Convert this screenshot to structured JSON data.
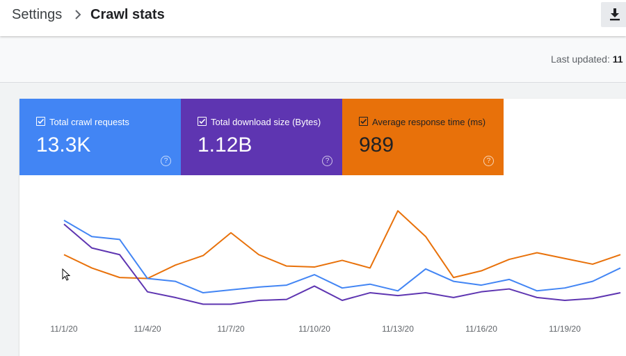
{
  "breadcrumb": {
    "root": "Settings",
    "current": "Crawl stats"
  },
  "toolbar": {
    "export_icon": "download-icon"
  },
  "status": {
    "last_updated_label": "Last updated:",
    "last_updated_value": "11"
  },
  "tiles": [
    {
      "label": "Total crawl requests",
      "value": "13.3K",
      "color": "#4285f4",
      "checked": true,
      "help_icon": "help-circle-icon"
    },
    {
      "label": "Total download size (Bytes)",
      "value": "1.12B",
      "color": "#5e35b1",
      "checked": true,
      "help_icon": "help-circle-icon"
    },
    {
      "label": "Average response time (ms)",
      "value": "989",
      "color": "#e8710a",
      "checked": true,
      "help_icon": "help-circle-icon",
      "text_color": "#202124"
    }
  ],
  "chart_data": {
    "type": "line",
    "x": [
      "11/1/20",
      "11/2/20",
      "11/3/20",
      "11/4/20",
      "11/5/20",
      "11/6/20",
      "11/7/20",
      "11/8/20",
      "11/9/20",
      "11/10/20",
      "11/11/20",
      "11/12/20",
      "11/13/20",
      "11/14/20",
      "11/15/20",
      "11/16/20",
      "11/17/20",
      "11/18/20",
      "11/19/20",
      "11/20/20",
      "11/21/20"
    ],
    "tick_labels": [
      "11/1/20",
      "11/4/20",
      "11/7/20",
      "11/10/20",
      "11/13/20",
      "11/16/20",
      "11/19/20"
    ],
    "ylim": [
      0,
      100
    ],
    "grid": false,
    "series": [
      {
        "name": "Total crawl requests",
        "color": "#4285f4",
        "values": [
          84,
          67,
          64,
          23,
          20,
          8,
          11,
          14,
          16,
          27,
          13,
          17,
          10,
          33,
          20,
          16,
          22,
          10,
          13,
          20,
          34
        ]
      },
      {
        "name": "Total download size (Bytes)",
        "color": "#5e35b1",
        "values": [
          80,
          55,
          48,
          9,
          3,
          -4,
          -4,
          0,
          1,
          15,
          0,
          8,
          5,
          8,
          3,
          9,
          12,
          3,
          0,
          2,
          8
        ]
      },
      {
        "name": "Average response time (ms)",
        "color": "#e8710a",
        "values": [
          48,
          34,
          24,
          23,
          37,
          47,
          71,
          48,
          36,
          35,
          42,
          34,
          94,
          67,
          24,
          31,
          43,
          50,
          44,
          38,
          48
        ]
      }
    ]
  }
}
